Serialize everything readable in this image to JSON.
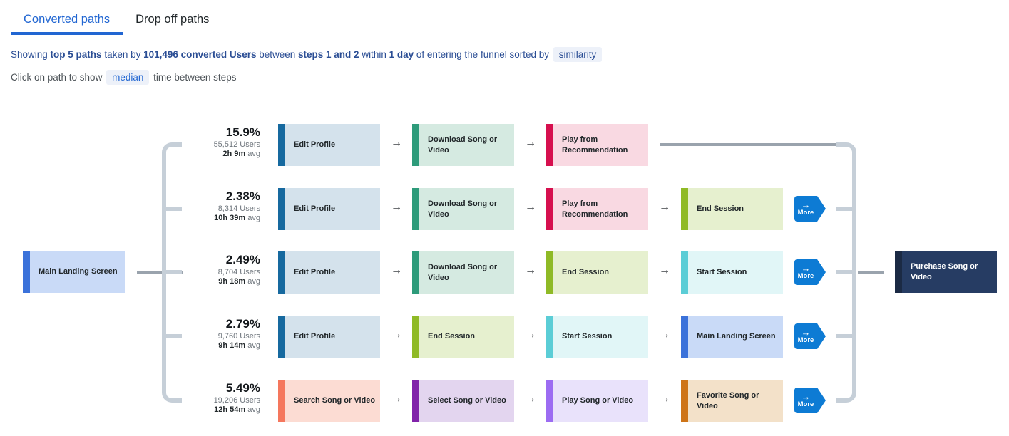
{
  "tabs": [
    {
      "label": "Converted paths",
      "active": true
    },
    {
      "label": "Drop off paths",
      "active": false
    }
  ],
  "summary_segments": [
    {
      "text": "Showing ",
      "bold": false
    },
    {
      "text": "top 5 paths",
      "bold": true
    },
    {
      "text": " taken by ",
      "bold": false
    },
    {
      "text": "101,496 converted Users",
      "bold": true
    },
    {
      "text": " between ",
      "bold": false
    },
    {
      "text": "steps 1 and 2",
      "bold": true
    },
    {
      "text": " within ",
      "bold": false
    },
    {
      "text": "1 day",
      "bold": true
    },
    {
      "text": " of entering the funnel sorted by ",
      "bold": false
    },
    {
      "text": "similarity",
      "bold": false,
      "pill": true
    }
  ],
  "hint": {
    "prefix": "Click on path to show",
    "pill": "median",
    "suffix": "time between steps"
  },
  "start_node": {
    "label": "Main Landing Screen",
    "bar": "#3b72da",
    "bg": "#c9daf7"
  },
  "end_node": {
    "label": "Purchase Song or Video",
    "bar": "#1b2a44",
    "bg": "#263c63"
  },
  "more_button": {
    "label": "More",
    "arrow": "→",
    "color": "#0d7bd4"
  },
  "arrow_glyph": "→",
  "paths": [
    {
      "percent": "15.9%",
      "users": "55,512 Users",
      "time": "2h 9m",
      "time_suffix": "avg",
      "has_more": false,
      "steps": [
        {
          "label": "Edit Profile",
          "bar": "#16699f",
          "bg": "#d4e2ec"
        },
        {
          "label": "Download Song or Video",
          "bar": "#2d9b7a",
          "bg": "#d5eae1"
        },
        {
          "label": "Play from Recommendation",
          "bar": "#d60f4e",
          "bg": "#f9d9e2"
        }
      ]
    },
    {
      "percent": "2.38%",
      "users": "8,314 Users",
      "time": "10h 39m",
      "time_suffix": "avg",
      "has_more": true,
      "steps": [
        {
          "label": "Edit Profile",
          "bar": "#16699f",
          "bg": "#d4e2ec"
        },
        {
          "label": "Download Song or Video",
          "bar": "#2d9b7a",
          "bg": "#d5eae1"
        },
        {
          "label": "Play from Recommendation",
          "bar": "#d60f4e",
          "bg": "#f9d9e2"
        },
        {
          "label": "End Session",
          "bar": "#8fba26",
          "bg": "#e6f0cf"
        }
      ]
    },
    {
      "percent": "2.49%",
      "users": "8,704 Users",
      "time": "9h 18m",
      "time_suffix": "avg",
      "has_more": true,
      "steps": [
        {
          "label": "Edit Profile",
          "bar": "#16699f",
          "bg": "#d4e2ec"
        },
        {
          "label": "Download Song or Video",
          "bar": "#2d9b7a",
          "bg": "#d5eae1"
        },
        {
          "label": "End Session",
          "bar": "#8fba26",
          "bg": "#e6f0cf"
        },
        {
          "label": "Start Session",
          "bar": "#5bcdd6",
          "bg": "#e1f6f7"
        }
      ]
    },
    {
      "percent": "2.79%",
      "users": "9,760 Users",
      "time": "9h 14m",
      "time_suffix": "avg",
      "has_more": true,
      "steps": [
        {
          "label": "Edit Profile",
          "bar": "#16699f",
          "bg": "#d4e2ec"
        },
        {
          "label": "End Session",
          "bar": "#8fba26",
          "bg": "#e6f0cf"
        },
        {
          "label": "Start Session",
          "bar": "#5bcdd6",
          "bg": "#e1f6f7"
        },
        {
          "label": "Main Landing Screen",
          "bar": "#3b72da",
          "bg": "#c9daf7"
        }
      ]
    },
    {
      "percent": "5.49%",
      "users": "19,206 Users",
      "time": "12h 54m",
      "time_suffix": "avg",
      "has_more": true,
      "steps": [
        {
          "label": "Search Song or Video",
          "bar": "#f5775d",
          "bg": "#fcdcd3"
        },
        {
          "label": "Select Song or Video",
          "bar": "#8123aa",
          "bg": "#e3d5ef"
        },
        {
          "label": "Play Song or Video",
          "bar": "#9c6cf2",
          "bg": "#e9e2fb"
        },
        {
          "label": "Favorite Song or Video",
          "bar": "#ce7418",
          "bg": "#f3e1c9"
        }
      ]
    }
  ],
  "colors": {
    "accent_blue": "#2166d2",
    "pill_bg": "#edf1f9",
    "bracket": "#c6cfd8",
    "connector": "#9aa3ad",
    "summary_text": "#2a4d94",
    "hint_text": "#4d5358"
  }
}
